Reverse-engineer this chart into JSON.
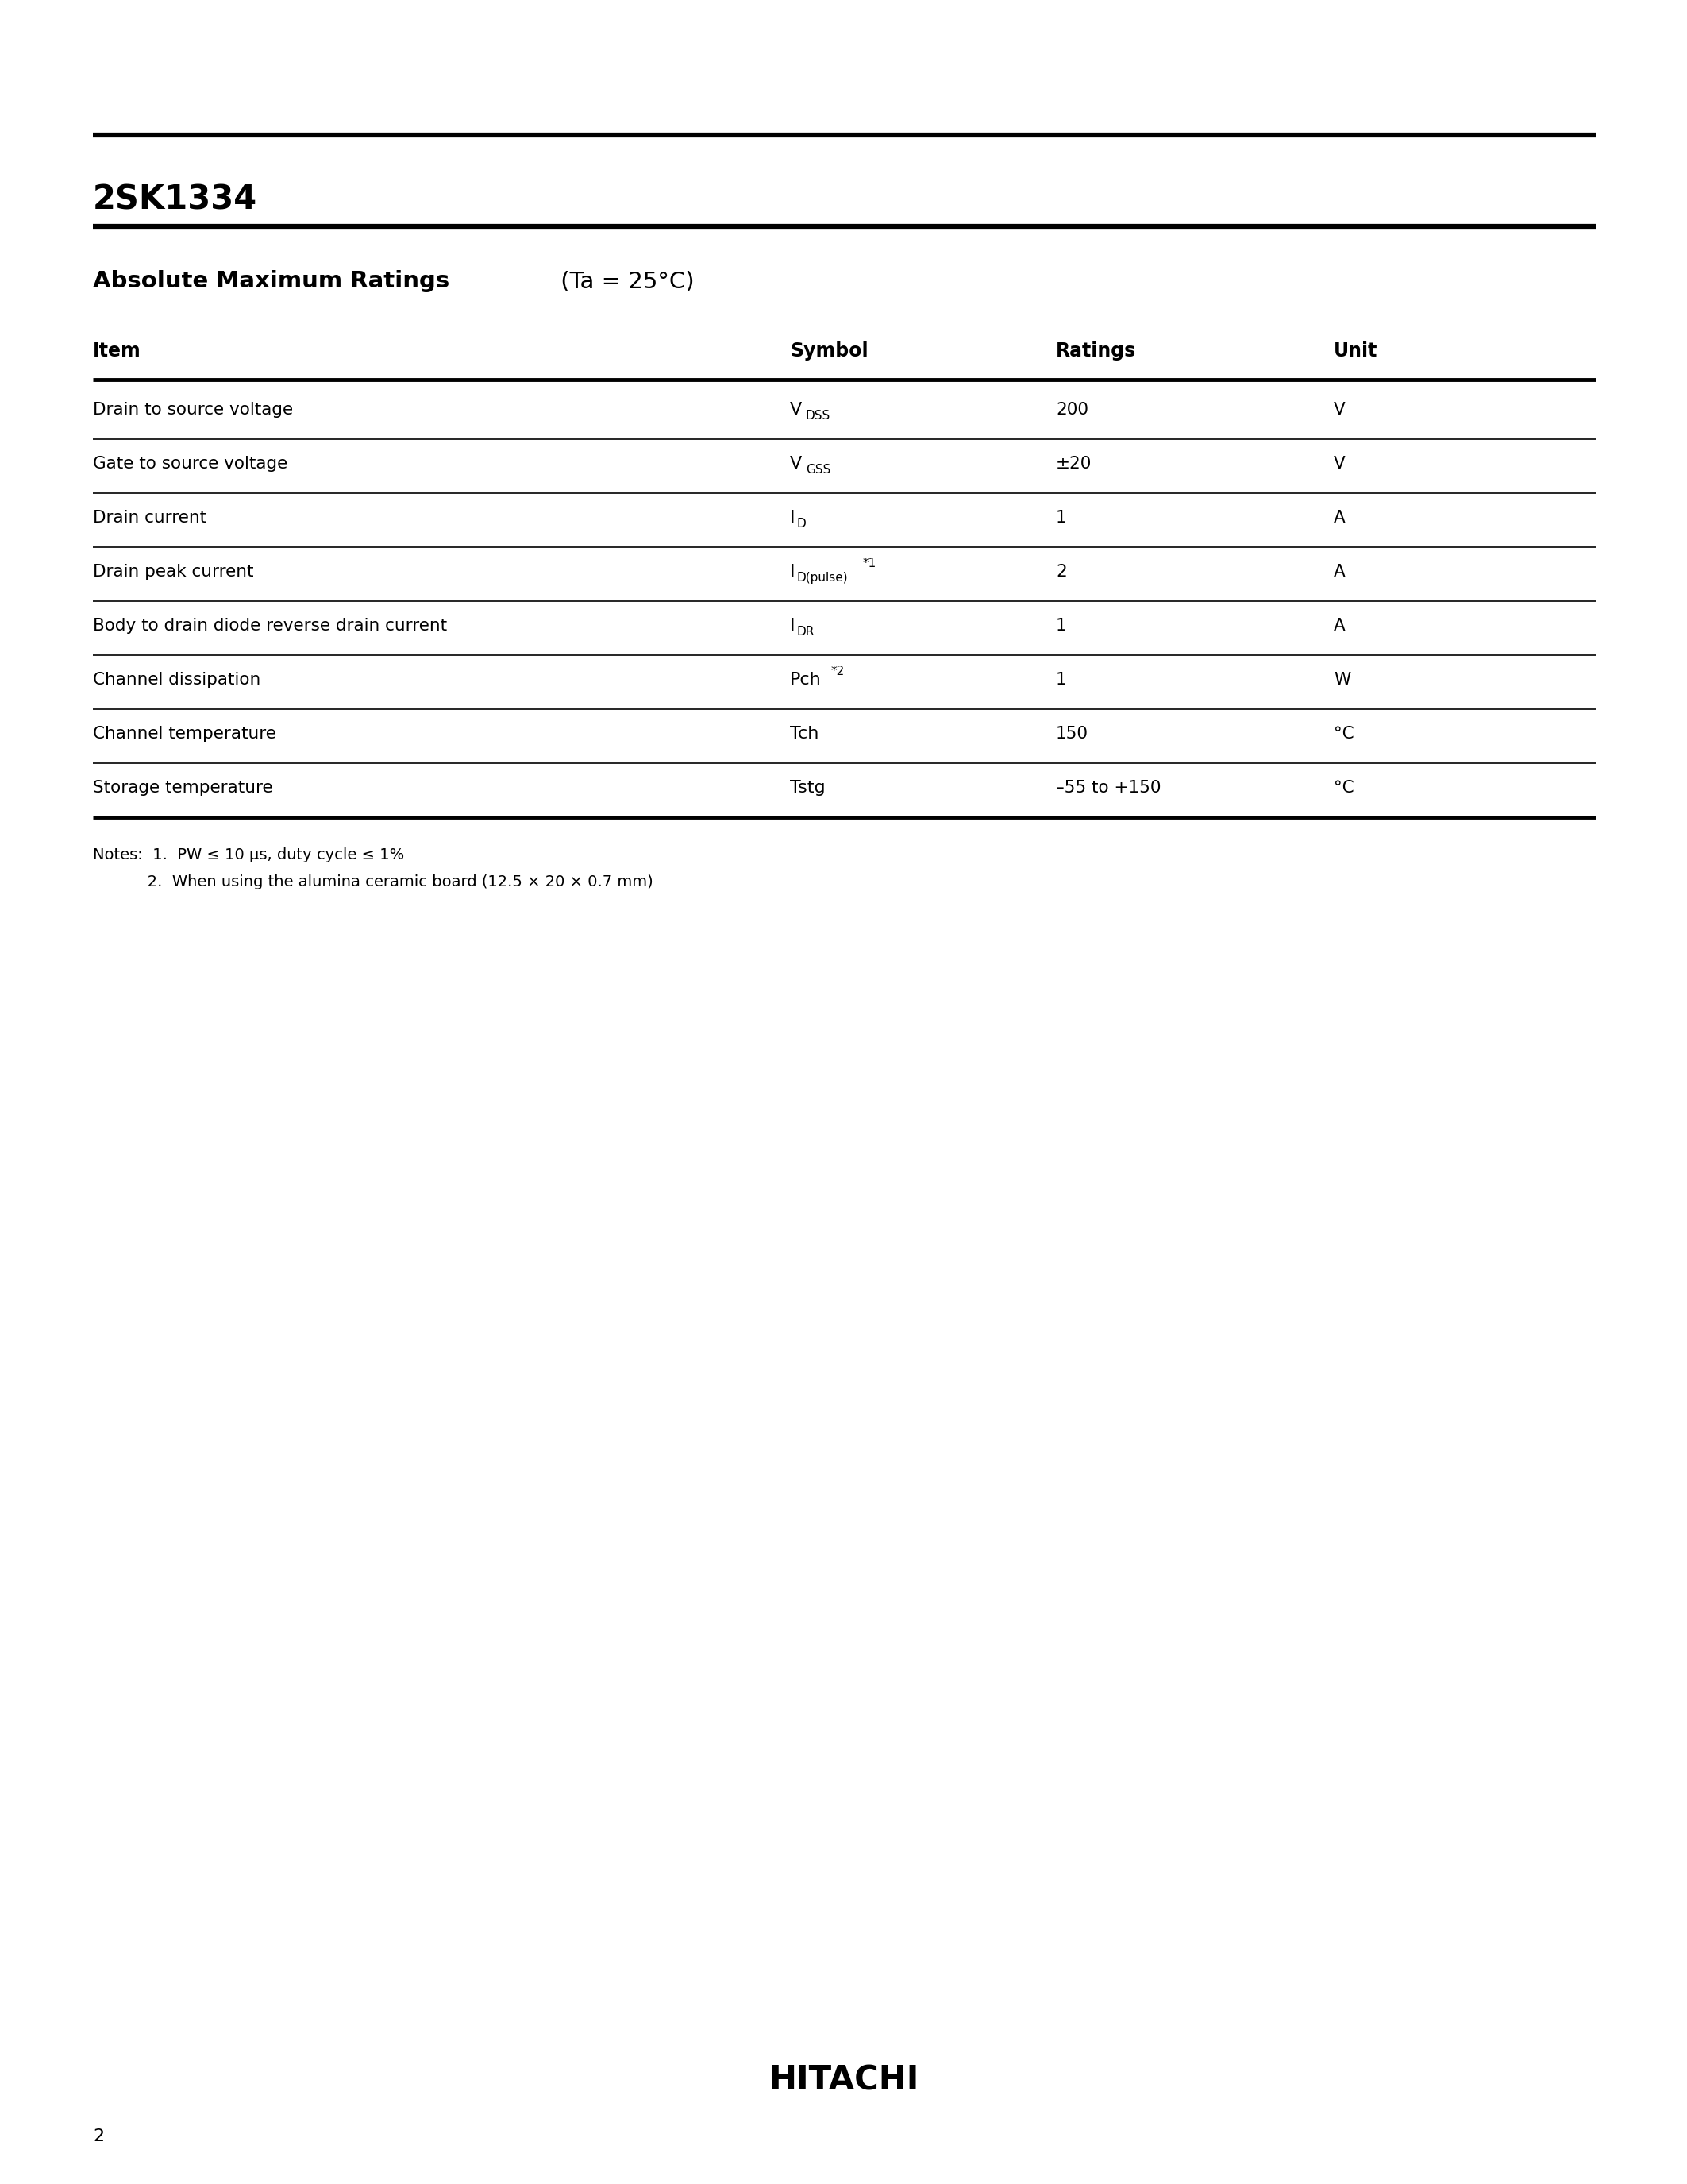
{
  "title": "2SK1334",
  "subtitle_bold": "Absolute Maximum Ratings",
  "subtitle_normal": " (Ta = 25°C)",
  "page_number": "2",
  "brand": "HITACHI",
  "table_headers": [
    "Item",
    "Symbol",
    "Ratings",
    "Unit"
  ],
  "table_rows": [
    {
      "item": "Drain to source voltage",
      "symbol_main": "V",
      "symbol_sub": "DSS",
      "symbol_sup": "",
      "ratings": "200",
      "unit": "V"
    },
    {
      "item": "Gate to source voltage",
      "symbol_main": "V",
      "symbol_sub": "GSS",
      "symbol_sup": "",
      "ratings": "±20",
      "unit": "V"
    },
    {
      "item": "Drain current",
      "symbol_main": "I",
      "symbol_sub": "D",
      "symbol_sup": "",
      "ratings": "1",
      "unit": "A"
    },
    {
      "item": "Drain peak current",
      "symbol_main": "I",
      "symbol_sub": "D(pulse)",
      "symbol_sup": "*1",
      "ratings": "2",
      "unit": "A"
    },
    {
      "item": "Body to drain diode reverse drain current",
      "symbol_main": "I",
      "symbol_sub": "DR",
      "symbol_sup": "",
      "ratings": "1",
      "unit": "A"
    },
    {
      "item": "Channel dissipation",
      "symbol_main": "Pch",
      "symbol_sub": "",
      "symbol_sup": "*2",
      "ratings": "1",
      "unit": "W"
    },
    {
      "item": "Channel temperature",
      "symbol_main": "Tch",
      "symbol_sub": "",
      "symbol_sup": "",
      "ratings": "150",
      "unit": "°C"
    },
    {
      "item": "Storage temperature",
      "symbol_main": "Tstg",
      "symbol_sub": "",
      "symbol_sup": "",
      "ratings": "–55 to +150",
      "unit": "°C"
    }
  ],
  "note1": "Notes:  1.  PW ≤ 10 μs, duty cycle ≤ 1%",
  "note2": "           2.  When using the alumina ceramic board (12.5 × 20 × 0.7 mm)",
  "background_color": "#ffffff",
  "text_color": "#000000",
  "line_color": "#000000"
}
